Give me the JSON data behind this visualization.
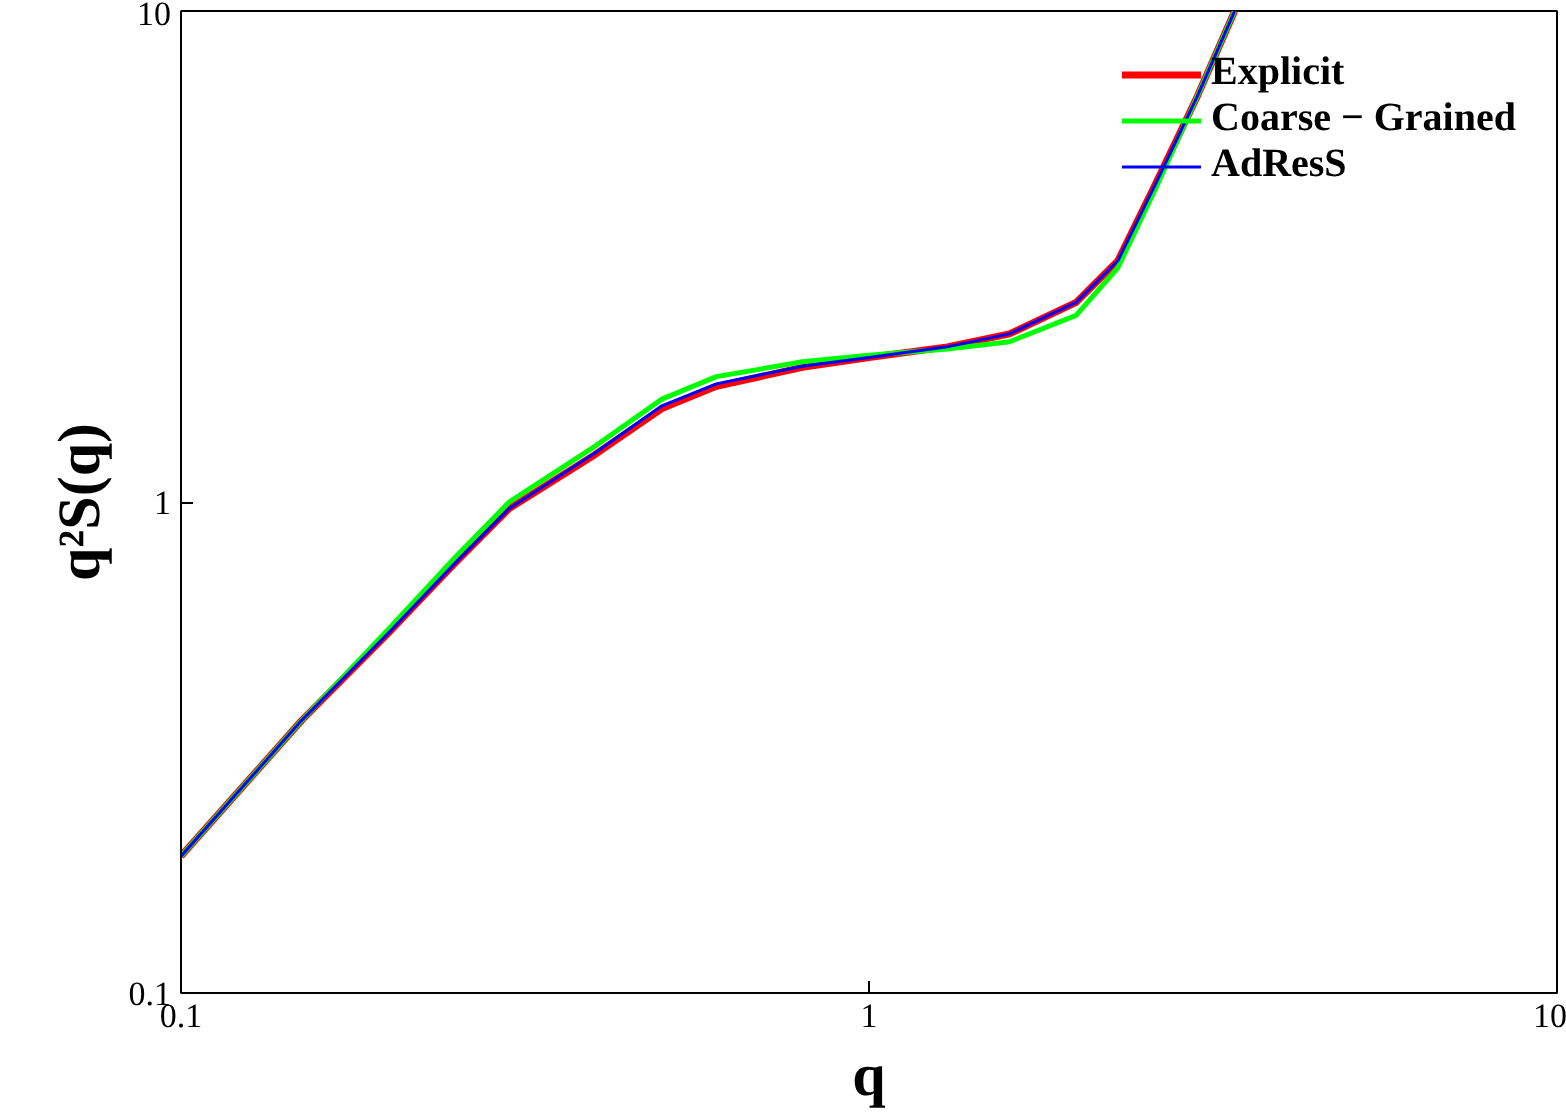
{
  "chart_data": {
    "type": "line",
    "xlabel": "q",
    "ylabel": "q²S(q)",
    "log": "xy",
    "xlim": [
      0.1,
      10
    ],
    "ylim": [
      0.1,
      10
    ],
    "xticks": [
      0.1,
      1,
      10
    ],
    "yticks": [
      0.1,
      1,
      10
    ],
    "grid": false,
    "legend": "top right",
    "line_style": "solid",
    "marker": "none",
    "x": [
      0.1,
      0.15,
      0.2,
      0.25,
      0.3,
      0.4,
      0.5,
      0.6,
      0.8,
      1,
      1.3,
      1.6,
      2,
      2.3,
      2.6,
      3,
      3.4
    ],
    "series": [
      {
        "name": "Explicit",
        "color": "#ff0000",
        "values": [
          0.19,
          0.36,
          0.54,
          0.75,
          0.97,
          1.25,
          1.55,
          1.72,
          1.88,
          1.97,
          2.07,
          2.2,
          2.55,
          3.1,
          4.4,
          6.7,
          10
        ]
      },
      {
        "name": "Coarse − Grained",
        "color": "#00ff00",
        "values": [
          0.19,
          0.36,
          0.55,
          0.77,
          1.0,
          1.3,
          1.62,
          1.8,
          1.93,
          1.99,
          2.05,
          2.12,
          2.4,
          3.0,
          4.3,
          6.7,
          10
        ]
      },
      {
        "name": "AdResS",
        "color": "#0000ff",
        "values": [
          0.19,
          0.36,
          0.54,
          0.75,
          0.97,
          1.26,
          1.57,
          1.74,
          1.89,
          1.97,
          2.07,
          2.2,
          2.55,
          3.1,
          4.4,
          6.7,
          10
        ]
      }
    ]
  }
}
